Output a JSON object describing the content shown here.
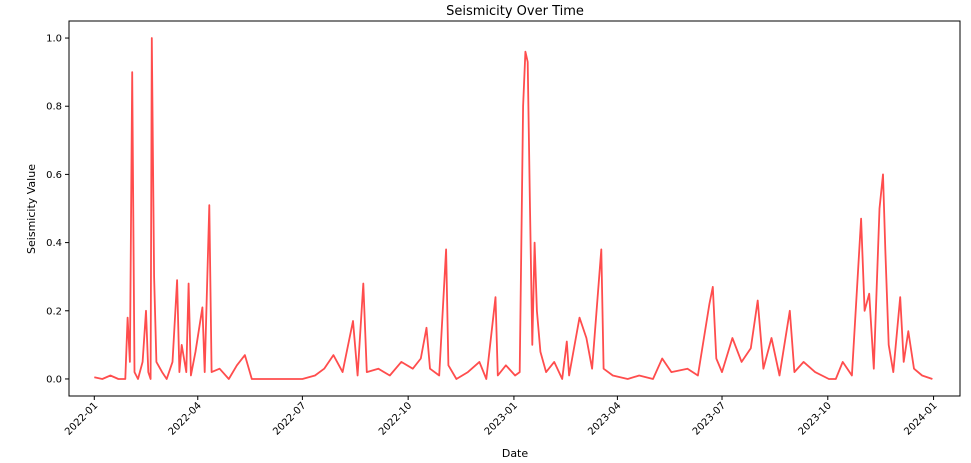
{
  "chart_data": {
    "type": "line",
    "title": "Seismicity Over Time",
    "xlabel": "Date",
    "ylabel": "Seismicity Value",
    "xlim": [
      "2021-12-10",
      "2024-01-24"
    ],
    "ylim": [
      -0.05,
      1.05
    ],
    "x_ticks": [
      "2022-01",
      "2022-04",
      "2022-07",
      "2022-10",
      "2023-01",
      "2023-04",
      "2023-07",
      "2023-10",
      "2024-01"
    ],
    "y_ticks": [
      0.0,
      0.2,
      0.4,
      0.6,
      0.8,
      1.0
    ],
    "y_tick_labels": [
      "0.0",
      "0.2",
      "0.4",
      "0.6",
      "0.8",
      "1.0"
    ],
    "grid": false,
    "series": [
      {
        "color": "#ff4d4d",
        "points": [
          [
            "2022-01-01",
            0.005
          ],
          [
            "2022-01-08",
            0.0
          ],
          [
            "2022-01-15",
            0.01
          ],
          [
            "2022-01-22",
            0.0
          ],
          [
            "2022-01-28",
            0.0
          ],
          [
            "2022-01-30",
            0.18
          ],
          [
            "2022-02-01",
            0.05
          ],
          [
            "2022-02-03",
            0.9
          ],
          [
            "2022-02-05",
            0.02
          ],
          [
            "2022-02-08",
            0.0
          ],
          [
            "2022-02-12",
            0.05
          ],
          [
            "2022-02-15",
            0.2
          ],
          [
            "2022-02-17",
            0.02
          ],
          [
            "2022-02-19",
            0.0
          ],
          [
            "2022-02-20",
            1.0
          ],
          [
            "2022-02-22",
            0.3
          ],
          [
            "2022-02-24",
            0.05
          ],
          [
            "2022-03-01",
            0.02
          ],
          [
            "2022-03-05",
            0.0
          ],
          [
            "2022-03-10",
            0.05
          ],
          [
            "2022-03-14",
            0.29
          ],
          [
            "2022-03-16",
            0.02
          ],
          [
            "2022-03-18",
            0.1
          ],
          [
            "2022-03-22",
            0.02
          ],
          [
            "2022-03-24",
            0.28
          ],
          [
            "2022-03-26",
            0.01
          ],
          [
            "2022-03-30",
            0.08
          ],
          [
            "2022-04-05",
            0.21
          ],
          [
            "2022-04-07",
            0.02
          ],
          [
            "2022-04-11",
            0.51
          ],
          [
            "2022-04-13",
            0.02
          ],
          [
            "2022-04-20",
            0.03
          ],
          [
            "2022-04-28",
            0.0
          ],
          [
            "2022-05-05",
            0.04
          ],
          [
            "2022-05-12",
            0.07
          ],
          [
            "2022-05-18",
            0.0
          ],
          [
            "2022-06-01",
            0.0
          ],
          [
            "2022-06-20",
            0.0
          ],
          [
            "2022-07-01",
            0.0
          ],
          [
            "2022-07-12",
            0.01
          ],
          [
            "2022-07-20",
            0.03
          ],
          [
            "2022-07-28",
            0.07
          ],
          [
            "2022-08-05",
            0.02
          ],
          [
            "2022-08-14",
            0.17
          ],
          [
            "2022-08-18",
            0.01
          ],
          [
            "2022-08-23",
            0.28
          ],
          [
            "2022-08-26",
            0.02
          ],
          [
            "2022-09-05",
            0.03
          ],
          [
            "2022-09-15",
            0.01
          ],
          [
            "2022-09-25",
            0.05
          ],
          [
            "2022-10-05",
            0.03
          ],
          [
            "2022-10-12",
            0.06
          ],
          [
            "2022-10-17",
            0.15
          ],
          [
            "2022-10-20",
            0.03
          ],
          [
            "2022-10-28",
            0.01
          ],
          [
            "2022-11-03",
            0.38
          ],
          [
            "2022-11-05",
            0.04
          ],
          [
            "2022-11-12",
            0.0
          ],
          [
            "2022-11-22",
            0.02
          ],
          [
            "2022-12-02",
            0.05
          ],
          [
            "2022-12-08",
            0.0
          ],
          [
            "2022-12-16",
            0.24
          ],
          [
            "2022-12-18",
            0.01
          ],
          [
            "2022-12-25",
            0.04
          ],
          [
            "2023-01-02",
            0.01
          ],
          [
            "2023-01-06",
            0.02
          ],
          [
            "2023-01-09",
            0.8
          ],
          [
            "2023-01-11",
            0.96
          ],
          [
            "2023-01-13",
            0.93
          ],
          [
            "2023-01-15",
            0.5
          ],
          [
            "2023-01-17",
            0.1
          ],
          [
            "2023-01-19",
            0.4
          ],
          [
            "2023-01-21",
            0.2
          ],
          [
            "2023-01-24",
            0.08
          ],
          [
            "2023-01-29",
            0.02
          ],
          [
            "2023-02-05",
            0.05
          ],
          [
            "2023-02-12",
            0.0
          ],
          [
            "2023-02-16",
            0.11
          ],
          [
            "2023-02-18",
            0.01
          ],
          [
            "2023-02-27",
            0.18
          ],
          [
            "2023-03-05",
            0.12
          ],
          [
            "2023-03-10",
            0.03
          ],
          [
            "2023-03-18",
            0.38
          ],
          [
            "2023-03-20",
            0.03
          ],
          [
            "2023-03-28",
            0.01
          ],
          [
            "2023-04-10",
            0.0
          ],
          [
            "2023-04-20",
            0.01
          ],
          [
            "2023-05-02",
            0.0
          ],
          [
            "2023-05-10",
            0.06
          ],
          [
            "2023-05-18",
            0.02
          ],
          [
            "2023-06-01",
            0.03
          ],
          [
            "2023-06-10",
            0.01
          ],
          [
            "2023-06-20",
            0.22
          ],
          [
            "2023-06-23",
            0.27
          ],
          [
            "2023-06-26",
            0.06
          ],
          [
            "2023-07-01",
            0.02
          ],
          [
            "2023-07-10",
            0.12
          ],
          [
            "2023-07-18",
            0.05
          ],
          [
            "2023-07-26",
            0.09
          ],
          [
            "2023-08-01",
            0.23
          ],
          [
            "2023-08-06",
            0.03
          ],
          [
            "2023-08-13",
            0.12
          ],
          [
            "2023-08-20",
            0.01
          ],
          [
            "2023-08-29",
            0.2
          ],
          [
            "2023-09-02",
            0.02
          ],
          [
            "2023-09-10",
            0.05
          ],
          [
            "2023-09-20",
            0.02
          ],
          [
            "2023-10-02",
            0.0
          ],
          [
            "2023-10-08",
            0.0
          ],
          [
            "2023-10-14",
            0.05
          ],
          [
            "2023-10-22",
            0.01
          ],
          [
            "2023-10-30",
            0.47
          ],
          [
            "2023-11-02",
            0.2
          ],
          [
            "2023-11-06",
            0.25
          ],
          [
            "2023-11-10",
            0.03
          ],
          [
            "2023-11-15",
            0.5
          ],
          [
            "2023-11-18",
            0.6
          ],
          [
            "2023-11-20",
            0.38
          ],
          [
            "2023-11-23",
            0.1
          ],
          [
            "2023-11-27",
            0.02
          ],
          [
            "2023-12-03",
            0.24
          ],
          [
            "2023-12-06",
            0.05
          ],
          [
            "2023-12-10",
            0.14
          ],
          [
            "2023-12-15",
            0.03
          ],
          [
            "2023-12-22",
            0.01
          ],
          [
            "2023-12-31",
            0.0
          ]
        ]
      }
    ]
  }
}
